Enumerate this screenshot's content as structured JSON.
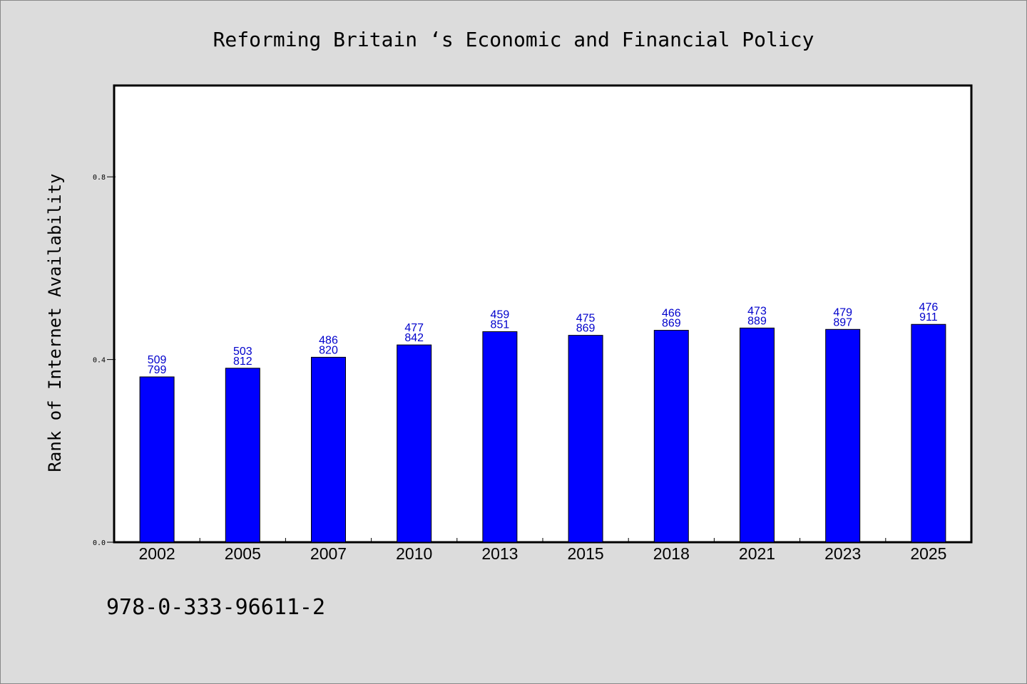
{
  "colors": {
    "background": "#dcdcdc",
    "plot_background": "#ffffff",
    "bar": "#0000ff",
    "bar_label": "#0000cc",
    "axis": "#000000"
  },
  "footer": {
    "isbn": "978-0-333-96611-2"
  },
  "chart_data": {
    "type": "bar",
    "title": "Reforming Britain ‘s Economic and Financial Policy",
    "xlabel": "",
    "ylabel": "Rank of Internet Availability",
    "ylim": [
      0,
      1.0
    ],
    "yticks": [
      0.0,
      0.4,
      0.8
    ],
    "ytick_labels": [
      "0.0",
      "0.4",
      "0.8"
    ],
    "grid": false,
    "categories": [
      "2002",
      "2005",
      "2007",
      "2010",
      "2013",
      "2015",
      "2018",
      "2021",
      "2023",
      "2025"
    ],
    "values": [
      0.362,
      0.381,
      0.405,
      0.432,
      0.461,
      0.453,
      0.464,
      0.469,
      0.466,
      0.477
    ],
    "bar_labels_top": [
      "509",
      "503",
      "486",
      "477",
      "459",
      "475",
      "466",
      "473",
      "479",
      "476"
    ],
    "bar_labels_bottom": [
      "799",
      "812",
      "820",
      "842",
      "851",
      "869",
      "869",
      "889",
      "897",
      "911"
    ]
  }
}
